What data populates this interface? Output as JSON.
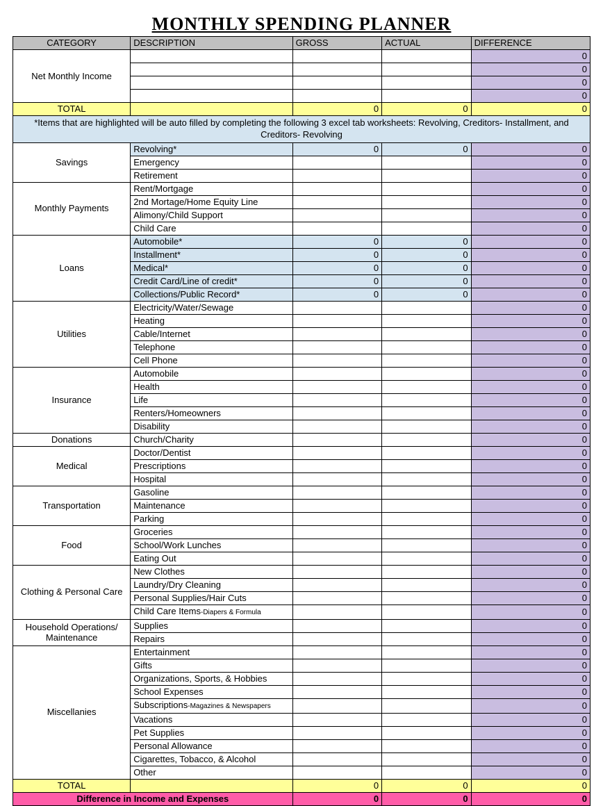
{
  "title": "MONTHLY SPENDING PLANNER",
  "headers": {
    "category": "CATEGORY",
    "description": "DESCRIPTION",
    "gross": "GROSS",
    "actual": "ACTUAL",
    "difference": "DIFFERENCE"
  },
  "income": {
    "label": "Net Monthly Income",
    "rows": 4,
    "diff": "0"
  },
  "total1": {
    "label": "TOTAL",
    "gross": "0",
    "actual": "0",
    "diff": "0"
  },
  "note": "*Items that are highlighted will be auto filled by completing the following 3 excel tab worksheets: Revolving, Creditors- Installment, and Creditors- Revolving",
  "sections": [
    {
      "cat": "Savings",
      "items": [
        {
          "d": "Revolving*",
          "hl": true,
          "g": "0",
          "a": "0"
        },
        {
          "d": "Emergency"
        },
        {
          "d": "Retirement"
        }
      ]
    },
    {
      "cat": "Monthly Payments",
      "items": [
        {
          "d": "Rent/Mortgage"
        },
        {
          "d": "2nd Mortage/Home Equity Line"
        },
        {
          "d": "Alimony/Child Support"
        },
        {
          "d": "Child Care"
        }
      ]
    },
    {
      "cat": "Loans",
      "items": [
        {
          "d": "Automobile*",
          "hl": true,
          "g": "0",
          "a": "0"
        },
        {
          "d": "Installment*",
          "hl": true,
          "g": "0",
          "a": "0"
        },
        {
          "d": "Medical*",
          "hl": true,
          "g": "0",
          "a": "0"
        },
        {
          "d": "Credit Card/Line of credit*",
          "hl": true,
          "g": "0",
          "a": "0"
        },
        {
          "d": "Collections/Public Record*",
          "hl": true,
          "g": "0",
          "a": "0"
        }
      ]
    },
    {
      "cat": "Utilities",
      "items": [
        {
          "d": "Electricity/Water/Sewage"
        },
        {
          "d": "Heating"
        },
        {
          "d": "Cable/Internet"
        },
        {
          "d": "Telephone"
        },
        {
          "d": "Cell Phone"
        }
      ]
    },
    {
      "cat": "Insurance",
      "items": [
        {
          "d": "Automobile"
        },
        {
          "d": "Health"
        },
        {
          "d": "Life"
        },
        {
          "d": "Renters/Homeowners"
        },
        {
          "d": "Disability"
        }
      ]
    },
    {
      "cat": "Donations",
      "items": [
        {
          "d": "Church/Charity"
        }
      ]
    },
    {
      "cat": "Medical",
      "items": [
        {
          "d": "Doctor/Dentist"
        },
        {
          "d": "Prescriptions"
        },
        {
          "d": "Hospital"
        }
      ]
    },
    {
      "cat": "Transportation",
      "items": [
        {
          "d": "Gasoline"
        },
        {
          "d": "Maintenance"
        },
        {
          "d": "Parking"
        }
      ]
    },
    {
      "cat": "Food",
      "items": [
        {
          "d": "Groceries"
        },
        {
          "d": "School/Work Lunches"
        },
        {
          "d": "Eating Out"
        }
      ]
    },
    {
      "cat": "Clothing & Personal Care",
      "items": [
        {
          "d": "New Clothes"
        },
        {
          "d": "Laundry/Dry Cleaning"
        },
        {
          "d": "Personal Supplies/Hair Cuts"
        },
        {
          "d": "Child Care Items",
          "sub": "-Diapers & Formula"
        }
      ]
    },
    {
      "cat": "Household Operations/ Maintenance",
      "items": [
        {
          "d": "Supplies"
        },
        {
          "d": "Repairs"
        }
      ]
    },
    {
      "cat": "Miscellanies",
      "items": [
        {
          "d": "Entertainment"
        },
        {
          "d": "Gifts"
        },
        {
          "d": "Organizations, Sports, & Hobbies"
        },
        {
          "d": "School Expenses"
        },
        {
          "d": "Subscriptions",
          "sub": "-Magazines & Newspapers"
        },
        {
          "d": "Vacations"
        },
        {
          "d": "Pet Supplies"
        },
        {
          "d": "Personal Allowance"
        },
        {
          "d": "Cigarettes, Tobacco, & Alcohol"
        },
        {
          "d": "Other"
        }
      ]
    }
  ],
  "total2": {
    "label": "TOTAL",
    "gross": "0",
    "actual": "0",
    "diff": "0"
  },
  "final": {
    "label": "Difference in Income and Expenses",
    "gross": "0",
    "actual": "0",
    "diff": "0"
  },
  "colors": {
    "header_bg": "#c0c0c0",
    "total_bg": "#ffff99",
    "note_bg": "#d4e4f0",
    "diff_bg": "#c9bde0",
    "hl_bg": "#d4e4f0",
    "pink_bg": "#ff5ca8"
  }
}
